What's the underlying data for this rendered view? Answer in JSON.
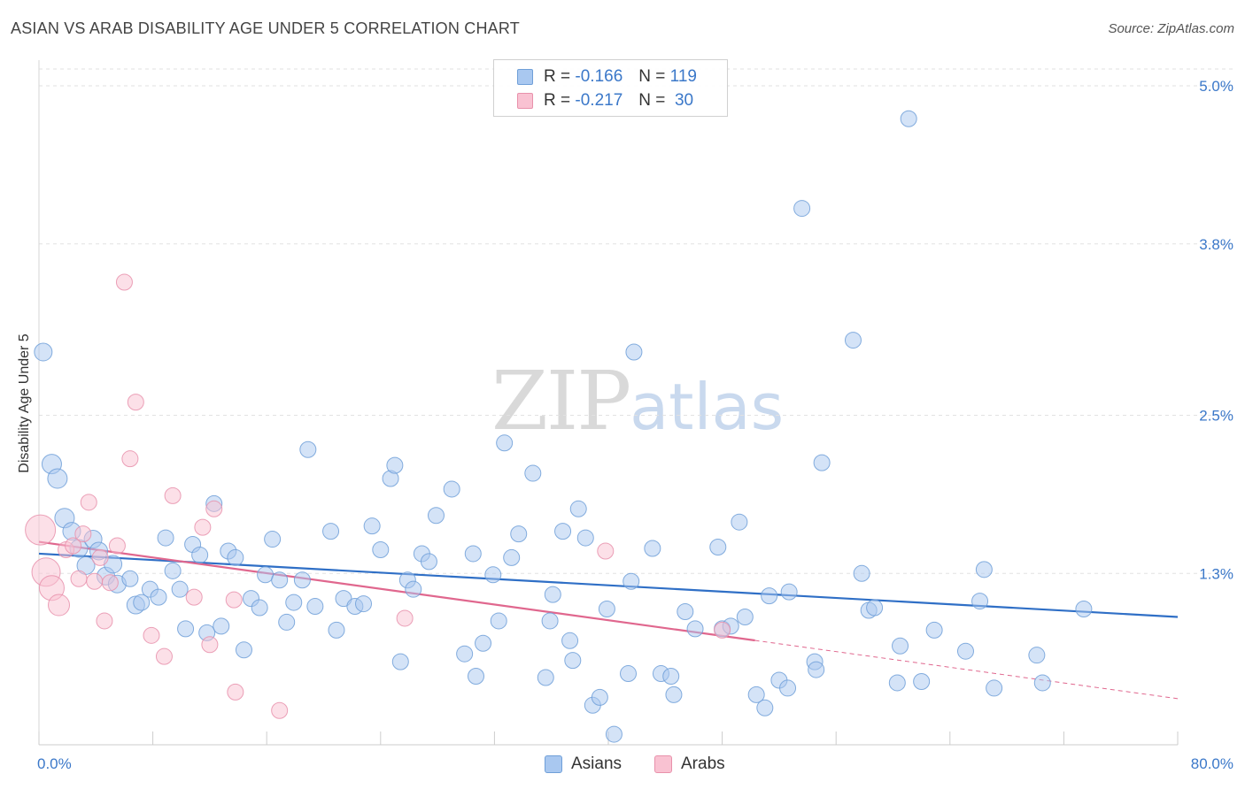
{
  "title": "ASIAN VS ARAB DISABILITY AGE UNDER 5 CORRELATION CHART",
  "source": "Source: ZipAtlas.com",
  "watermark": {
    "zip": "ZIP",
    "atlas": "atlas"
  },
  "legend": {
    "r_label": "R =",
    "n_label": "N =",
    "entries": [
      {
        "r": "-0.166",
        "n": "119",
        "color": "#a9c8f0",
        "border": "#6f9fd8"
      },
      {
        "r": "-0.217",
        "n": "30",
        "color": "#f9c2d2",
        "border": "#e891ab"
      }
    ]
  },
  "bottom_legend": [
    {
      "label": "Asians",
      "color": "#a9c8f0",
      "border": "#6f9fd8"
    },
    {
      "label": "Arabs",
      "color": "#f9c2d2",
      "border": "#e891ab"
    }
  ],
  "chart_data": {
    "type": "scatter",
    "title": "ASIAN VS ARAB DISABILITY AGE UNDER 5 CORRELATION CHART",
    "xlabel": "",
    "ylabel": "Disability Age Under 5",
    "xlim": [
      0,
      80
    ],
    "ylim": [
      0,
      5.2
    ],
    "x_tick_labels": [
      "0.0%",
      "80.0%"
    ],
    "y_ticks": [
      {
        "value": 1.3,
        "label": "1.3%"
      },
      {
        "value": 2.5,
        "label": "2.5%"
      },
      {
        "value": 3.8,
        "label": "3.8%"
      },
      {
        "value": 5.0,
        "label": "5.0%"
      }
    ],
    "series": [
      {
        "name": "Asians",
        "color": "#6f9fd8",
        "fill": "#a9c8f0",
        "r": -0.166,
        "n": 119,
        "trend": {
          "x0": 0,
          "y0": 1.45,
          "x1": 80,
          "y1": 0.97,
          "dashed_from": null
        },
        "points": [
          [
            0.3,
            2.98,
            10
          ],
          [
            0.9,
            2.13,
            11
          ],
          [
            1.3,
            2.02,
            11
          ],
          [
            1.8,
            1.72,
            11
          ],
          [
            2.3,
            1.62,
            10
          ],
          [
            2.8,
            1.49,
            10
          ],
          [
            3.3,
            1.36,
            10
          ],
          [
            3.8,
            1.56,
            10
          ],
          [
            4.2,
            1.47,
            10
          ],
          [
            4.7,
            1.28,
            10
          ],
          [
            5.2,
            1.37,
            10
          ],
          [
            5.5,
            1.22,
            10
          ],
          [
            6.4,
            1.26,
            9
          ],
          [
            6.8,
            1.06,
            10
          ],
          [
            7.2,
            1.08,
            9
          ],
          [
            7.8,
            1.18,
            9
          ],
          [
            8.4,
            1.12,
            9
          ],
          [
            8.9,
            1.57,
            9
          ],
          [
            9.4,
            1.32,
            9
          ],
          [
            9.9,
            1.18,
            9
          ],
          [
            10.3,
            0.88,
            9
          ],
          [
            10.8,
            1.52,
            9
          ],
          [
            11.3,
            1.44,
            9
          ],
          [
            11.8,
            0.85,
            9
          ],
          [
            12.3,
            1.83,
            9
          ],
          [
            12.8,
            0.9,
            9
          ],
          [
            13.3,
            1.47,
            9
          ],
          [
            13.8,
            1.42,
            9
          ],
          [
            14.4,
            0.72,
            9
          ],
          [
            14.9,
            1.11,
            9
          ],
          [
            15.5,
            1.04,
            9
          ],
          [
            15.9,
            1.29,
            9
          ],
          [
            16.4,
            1.56,
            9
          ],
          [
            16.9,
            1.25,
            9
          ],
          [
            17.4,
            0.93,
            9
          ],
          [
            17.9,
            1.08,
            9
          ],
          [
            18.5,
            1.25,
            9
          ],
          [
            18.9,
            2.24,
            9
          ],
          [
            19.4,
            1.05,
            9
          ],
          [
            20.5,
            1.62,
            9
          ],
          [
            20.9,
            0.87,
            9
          ],
          [
            21.4,
            1.11,
            9
          ],
          [
            22.2,
            1.05,
            9
          ],
          [
            22.8,
            1.07,
            9
          ],
          [
            23.4,
            1.66,
            9
          ],
          [
            24.0,
            1.48,
            9
          ],
          [
            24.7,
            2.02,
            9
          ],
          [
            25.0,
            2.12,
            9
          ],
          [
            25.4,
            0.63,
            9
          ],
          [
            25.9,
            1.25,
            9
          ],
          [
            26.3,
            1.18,
            9
          ],
          [
            26.9,
            1.45,
            9
          ],
          [
            27.4,
            1.39,
            9
          ],
          [
            27.9,
            1.74,
            9
          ],
          [
            29.0,
            1.94,
            9
          ],
          [
            29.9,
            0.69,
            9
          ],
          [
            30.5,
            1.45,
            9
          ],
          [
            30.7,
            0.52,
            9
          ],
          [
            31.2,
            0.77,
            9
          ],
          [
            31.9,
            1.29,
            9
          ],
          [
            32.3,
            0.94,
            9
          ],
          [
            32.7,
            2.29,
            9
          ],
          [
            33.2,
            1.42,
            9
          ],
          [
            33.7,
            1.6,
            9
          ],
          [
            34.7,
            2.06,
            9
          ],
          [
            35.6,
            0.51,
            9
          ],
          [
            35.9,
            0.94,
            9
          ],
          [
            36.1,
            1.14,
            9
          ],
          [
            36.8,
            1.62,
            9
          ],
          [
            37.3,
            0.79,
            9
          ],
          [
            37.5,
            0.64,
            9
          ],
          [
            37.9,
            1.79,
            9
          ],
          [
            38.4,
            1.57,
            9
          ],
          [
            38.9,
            0.3,
            9
          ],
          [
            39.4,
            0.36,
            9
          ],
          [
            39.9,
            1.03,
            9
          ],
          [
            40.4,
            0.08,
            9
          ],
          [
            41.4,
            0.54,
            9
          ],
          [
            41.6,
            1.24,
            9
          ],
          [
            41.8,
            2.98,
            9
          ],
          [
            43.1,
            1.49,
            9
          ],
          [
            43.7,
            0.54,
            9
          ],
          [
            44.4,
            0.52,
            9
          ],
          [
            44.6,
            0.38,
            9
          ],
          [
            45.4,
            1.01,
            9
          ],
          [
            46.1,
            0.88,
            9
          ],
          [
            47.7,
            1.5,
            9
          ],
          [
            48.0,
            0.88,
            9
          ],
          [
            48.6,
            0.9,
            9
          ],
          [
            49.2,
            1.69,
            9
          ],
          [
            49.6,
            0.97,
            9
          ],
          [
            50.4,
            0.38,
            9
          ],
          [
            51.0,
            0.28,
            9
          ],
          [
            51.3,
            1.13,
            9
          ],
          [
            52.0,
            0.49,
            9
          ],
          [
            52.6,
            0.43,
            9
          ],
          [
            52.7,
            1.16,
            9
          ],
          [
            53.6,
            4.07,
            9
          ],
          [
            54.5,
            0.63,
            9
          ],
          [
            54.6,
            0.57,
            9
          ],
          [
            55.0,
            2.14,
            9
          ],
          [
            57.2,
            3.07,
            9
          ],
          [
            57.8,
            1.3,
            9
          ],
          [
            58.3,
            1.02,
            9
          ],
          [
            58.7,
            1.04,
            9
          ],
          [
            60.3,
            0.47,
            9
          ],
          [
            60.5,
            0.75,
            9
          ],
          [
            62.0,
            0.48,
            9
          ],
          [
            62.9,
            0.87,
            9
          ],
          [
            65.1,
            0.71,
            9
          ],
          [
            66.1,
            1.09,
            9
          ],
          [
            66.4,
            1.33,
            9
          ],
          [
            67.1,
            0.43,
            9
          ],
          [
            70.1,
            0.68,
            9
          ],
          [
            70.5,
            0.47,
            9
          ],
          [
            73.4,
            1.03,
            9
          ],
          [
            61.1,
            4.75,
            9
          ]
        ]
      },
      {
        "name": "Arabs",
        "color": "#e891ab",
        "fill": "#f9c2d2",
        "r": -0.217,
        "n": 30,
        "trend": {
          "x0": 0,
          "y0": 1.54,
          "x1": 80,
          "y1": 0.35,
          "dashed_from": 50.3
        },
        "points": [
          [
            0.1,
            1.63,
            17
          ],
          [
            0.5,
            1.31,
            16
          ],
          [
            0.9,
            1.19,
            14
          ],
          [
            1.4,
            1.06,
            12
          ],
          [
            1.9,
            1.48,
            9
          ],
          [
            2.4,
            1.51,
            9
          ],
          [
            2.8,
            1.26,
            9
          ],
          [
            3.1,
            1.6,
            9
          ],
          [
            3.5,
            1.84,
            9
          ],
          [
            3.9,
            1.24,
            9
          ],
          [
            4.3,
            1.42,
            9
          ],
          [
            4.6,
            0.94,
            9
          ],
          [
            5.0,
            1.23,
            9
          ],
          [
            5.5,
            1.51,
            9
          ],
          [
            6.0,
            3.51,
            9
          ],
          [
            6.4,
            2.17,
            9
          ],
          [
            6.8,
            2.6,
            9
          ],
          [
            7.9,
            0.83,
            9
          ],
          [
            8.8,
            0.67,
            9
          ],
          [
            9.4,
            1.89,
            9
          ],
          [
            10.9,
            1.12,
            9
          ],
          [
            11.5,
            1.65,
            9
          ],
          [
            12.0,
            0.76,
            9
          ],
          [
            12.3,
            1.79,
            9
          ],
          [
            13.7,
            1.1,
            9
          ],
          [
            13.8,
            0.4,
            9
          ],
          [
            16.9,
            0.26,
            9
          ],
          [
            25.7,
            0.96,
            9
          ],
          [
            39.8,
            1.47,
            9
          ],
          [
            48.0,
            0.87,
            9
          ]
        ]
      }
    ]
  }
}
